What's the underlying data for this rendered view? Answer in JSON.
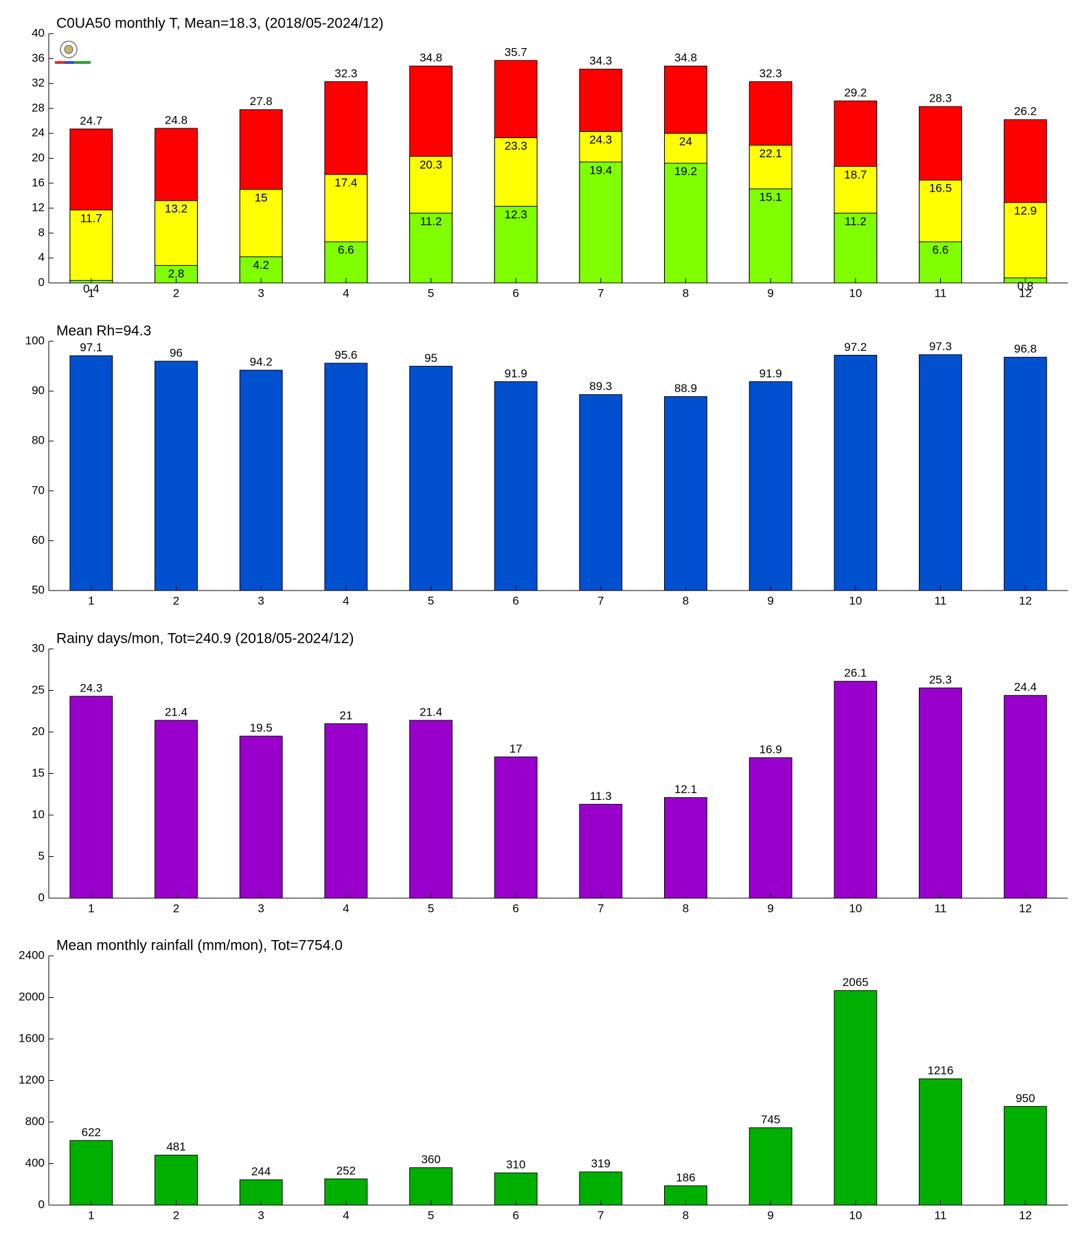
{
  "chart_data": [
    {
      "type": "bar",
      "title": "C0UA50 monthly T, Mean=18.3, (2018/05-2024/12)",
      "categories": [
        "1",
        "2",
        "3",
        "4",
        "5",
        "6",
        "7",
        "8",
        "9",
        "10",
        "11",
        "12"
      ],
      "series": [
        {
          "color": "#ff0000",
          "values": [
            24.7,
            24.8,
            27.8,
            32.3,
            34.8,
            35.7,
            34.3,
            34.8,
            32.3,
            29.2,
            28.3,
            26.2
          ]
        },
        {
          "color": "#ffff00",
          "values": [
            11.7,
            13.2,
            15,
            17.4,
            20.3,
            23.3,
            24.3,
            24,
            22.1,
            18.7,
            16.5,
            12.9
          ]
        },
        {
          "color": "#80ff00",
          "values": [
            0.4,
            2.8,
            4.2,
            6.6,
            11.2,
            12.3,
            19.4,
            19.2,
            15.1,
            11.2,
            6.6,
            0.8
          ]
        }
      ],
      "ylim": [
        0,
        40
      ],
      "yticks": [
        0,
        4,
        8,
        12,
        16,
        20,
        24,
        28,
        32,
        36,
        40
      ]
    },
    {
      "type": "bar",
      "title": "Mean Rh=94.3",
      "categories": [
        "1",
        "2",
        "3",
        "4",
        "5",
        "6",
        "7",
        "8",
        "9",
        "10",
        "11",
        "12"
      ],
      "series": [
        {
          "color": "#0050d0",
          "values": [
            97.1,
            96,
            94.2,
            95.6,
            95,
            91.9,
            89.3,
            88.9,
            91.9,
            97.2,
            97.3,
            96.8
          ]
        }
      ],
      "ylim": [
        50,
        100
      ],
      "yticks": [
        50,
        60,
        70,
        80,
        90,
        100
      ]
    },
    {
      "type": "bar",
      "title": "Rainy days/mon, Tot=240.9 (2018/05-2024/12)",
      "categories": [
        "1",
        "2",
        "3",
        "4",
        "5",
        "6",
        "7",
        "8",
        "9",
        "10",
        "11",
        "12"
      ],
      "series": [
        {
          "color": "#9900cc",
          "values": [
            24.3,
            21.4,
            19.5,
            21,
            21.4,
            17,
            11.3,
            12.1,
            16.9,
            26.1,
            25.3,
            24.4
          ]
        }
      ],
      "ylim": [
        0,
        30
      ],
      "yticks": [
        0,
        5,
        10,
        15,
        20,
        25,
        30
      ]
    },
    {
      "type": "bar",
      "title": "Mean monthly rainfall (mm/mon), Tot=7754.0",
      "categories": [
        "1",
        "2",
        "3",
        "4",
        "5",
        "6",
        "7",
        "8",
        "9",
        "10",
        "11",
        "12"
      ],
      "series": [
        {
          "color": "#00b000",
          "values": [
            622,
            481,
            244,
            252,
            360,
            310,
            319,
            186,
            745,
            2065,
            1216,
            950
          ]
        }
      ],
      "ylim": [
        0,
        2400
      ],
      "yticks": [
        0,
        400,
        800,
        1200,
        1600,
        2000,
        2400
      ]
    }
  ]
}
